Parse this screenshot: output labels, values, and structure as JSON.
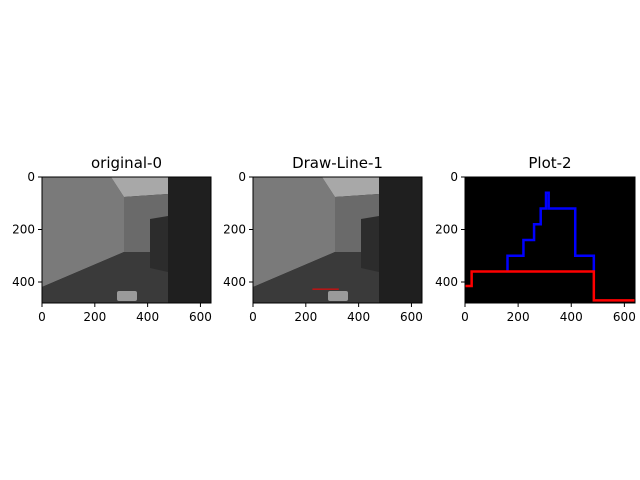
{
  "figure": {
    "background": "#ffffff"
  },
  "chart_data": [
    {
      "type": "image",
      "title": "original-0",
      "xlim": [
        0,
        640
      ],
      "ylim": [
        480,
        0
      ],
      "xticks": [
        0,
        200,
        400,
        600
      ],
      "yticks": [
        0,
        200,
        400
      ],
      "overlay_lines": []
    },
    {
      "type": "image",
      "title": "Draw-Line-1",
      "xlim": [
        0,
        640
      ],
      "ylim": [
        480,
        0
      ],
      "xticks": [
        0,
        200,
        400,
        600
      ],
      "yticks": [
        0,
        200,
        400
      ],
      "overlay_lines": [
        {
          "color": "#ff0000",
          "x": [
            225,
            325
          ],
          "y": [
            427,
            427
          ]
        }
      ]
    },
    {
      "type": "line",
      "title": "Plot-2",
      "background": "#000000",
      "xlim": [
        0,
        640
      ],
      "ylim": [
        480,
        0
      ],
      "xticks": [
        0,
        200,
        400,
        600
      ],
      "yticks": [
        0,
        200,
        400
      ],
      "series": [
        {
          "color": "#0000ff",
          "x": [
            160,
            160,
            220,
            220,
            260,
            260,
            285,
            285,
            305,
            305,
            315,
            315,
            330,
            330,
            415,
            415,
            485,
            485
          ],
          "y": [
            360,
            300,
            300,
            240,
            240,
            180,
            180,
            120,
            120,
            60,
            60,
            120,
            120,
            120,
            120,
            300,
            300,
            360
          ]
        },
        {
          "color": "#ff0000",
          "x": [
            0,
            25,
            25,
            485,
            485,
            640
          ],
          "y": [
            415,
            415,
            360,
            360,
            470,
            470
          ]
        }
      ]
    }
  ]
}
